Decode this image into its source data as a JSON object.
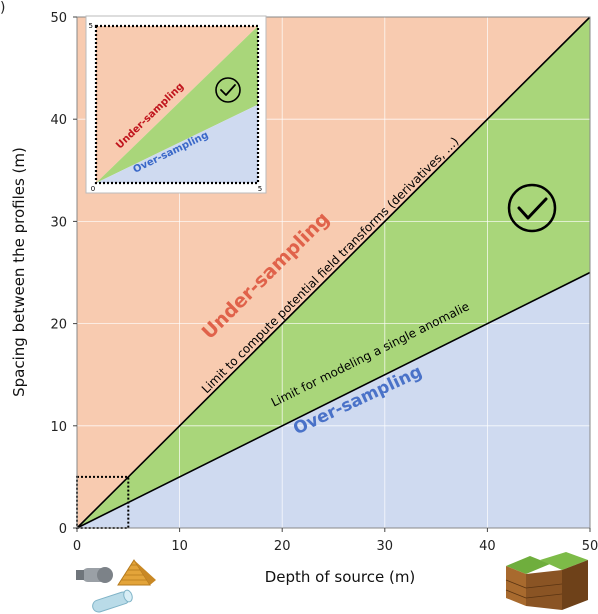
{
  "panel_label": ")",
  "chart_data": {
    "type": "area",
    "xlabel": "Depth of source (m)",
    "ylabel": "Spacing between the profiles (m)",
    "xlim": [
      0,
      50
    ],
    "ylim": [
      0,
      50
    ],
    "x_ticks": [
      "0",
      "10",
      "20",
      "30",
      "40",
      "50"
    ],
    "y_ticks": [
      "0",
      "10",
      "20",
      "30",
      "40",
      "50"
    ],
    "grid": true,
    "regions": [
      {
        "label": "Under-sampling",
        "color": "#f8cbb0",
        "text_color": "#e0624a"
      },
      {
        "label": "",
        "color": "#a9d67a",
        "text_color": ""
      },
      {
        "label": "Over-sampling",
        "color": "#cfdaf0",
        "text_color": "#4a72c8"
      }
    ],
    "series": [
      {
        "name": "Limit to compute potential field transforms (derivatives, ...)",
        "x": [
          0,
          50
        ],
        "y": [
          0,
          50
        ]
      },
      {
        "name": "Limit for modeling a single anomalie",
        "x": [
          0,
          50
        ],
        "y": [
          0,
          25
        ]
      }
    ],
    "zoom_box": {
      "x": [
        0,
        5
      ],
      "y": [
        0,
        5
      ]
    },
    "inset": {
      "x_ticks": [
        "0",
        "5"
      ],
      "y_ticks": [
        "5"
      ],
      "under_label": "Under-sampling",
      "over_label": "Over-sampling",
      "under_color": "#c0141c",
      "over_color": "#3a68c8"
    },
    "icons": [
      "check-mark-icon",
      "cannon-icon",
      "pyramid-icon",
      "pipe-icon",
      "geological-fault-icon"
    ]
  }
}
